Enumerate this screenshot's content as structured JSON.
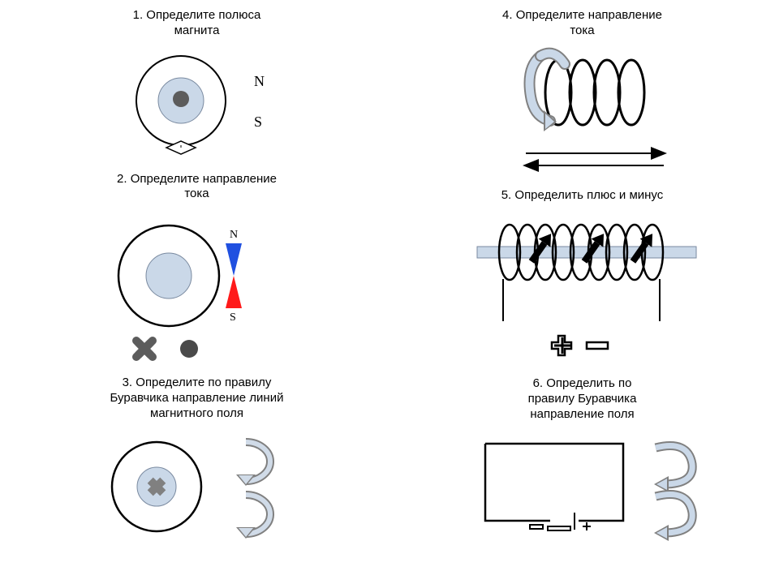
{
  "colors": {
    "bg": "#ffffff",
    "stroke": "#000000",
    "lightBlue": "#cad8e8",
    "darkGray": "#5c5c5c",
    "midGray": "#808080",
    "red": "#ff1a1a",
    "blue": "#2050e0",
    "arrowFill": "#d0dbe8"
  },
  "tasks": {
    "t1": {
      "title": "1. Определите полюса\nмагнита",
      "labels": {
        "n": "N",
        "s": "S"
      }
    },
    "t2": {
      "title": "2. Определите направление\nтока",
      "labels": {
        "n": "N",
        "s": "S"
      }
    },
    "t3": {
      "title": "3. Определите по правилу\nБуравчика направление линий\nмагнитного поля"
    },
    "t4": {
      "title": "4. Определите направление\nтока"
    },
    "t5": {
      "title": "5. Определить плюс и минус"
    },
    "t6": {
      "title": "6. Определить по\nправилу Буравчика\nнаправление поля"
    }
  }
}
